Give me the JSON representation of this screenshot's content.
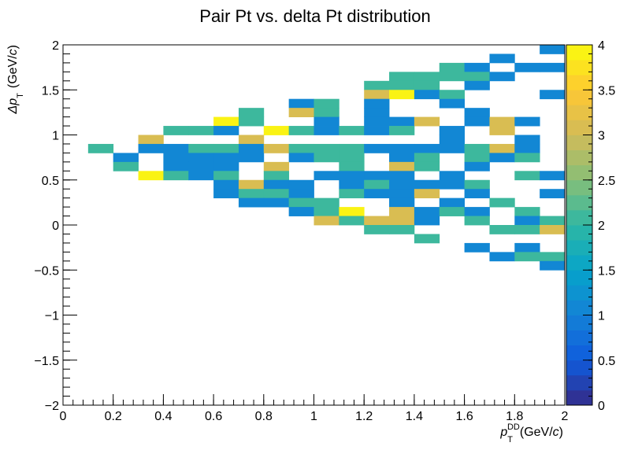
{
  "chart_data": {
    "type": "heatmap",
    "title": "Pair Pt vs. delta Pt distribution",
    "xlabel": {
      "main": "p",
      "sub": "T",
      "sup": "DD",
      "unit_prefix": "(GeV/",
      "unit_italic": "c",
      "unit_suffix": ")"
    },
    "ylabel": {
      "main": "Δp",
      "sub": "T",
      "unit_prefix": "(GeV/",
      "unit_italic": "c",
      "unit_suffix": ")"
    },
    "xlim": [
      0,
      2
    ],
    "ylim": [
      -2,
      2
    ],
    "zlim": [
      0,
      4
    ],
    "x_bins": 20,
    "y_bins": 40,
    "x_ticks": [
      {
        "v": 0,
        "label": "0"
      },
      {
        "v": 0.2,
        "label": "0.2"
      },
      {
        "v": 0.4,
        "label": "0.4"
      },
      {
        "v": 0.6,
        "label": "0.6"
      },
      {
        "v": 0.8,
        "label": "0.8"
      },
      {
        "v": 1,
        "label": "1"
      },
      {
        "v": 1.2,
        "label": "1.2"
      },
      {
        "v": 1.4,
        "label": "1.4"
      },
      {
        "v": 1.6,
        "label": "1.6"
      },
      {
        "v": 1.8,
        "label": "1.8"
      },
      {
        "v": 2,
        "label": "2"
      }
    ],
    "y_ticks": [
      {
        "v": -2,
        "label": "−2"
      },
      {
        "v": -1.5,
        "label": "−1.5"
      },
      {
        "v": -1,
        "label": "−1"
      },
      {
        "v": -0.5,
        "label": "−0.5"
      },
      {
        "v": 0,
        "label": "0"
      },
      {
        "v": 0.5,
        "label": "0.5"
      },
      {
        "v": 1,
        "label": "1"
      },
      {
        "v": 1.5,
        "label": "1.5"
      },
      {
        "v": 2,
        "label": "2"
      }
    ],
    "z_ticks": [
      {
        "v": 0,
        "label": "0"
      },
      {
        "v": 0.5,
        "label": "0.5"
      },
      {
        "v": 1,
        "label": "1"
      },
      {
        "v": 1.5,
        "label": "1.5"
      },
      {
        "v": 2,
        "label": "2"
      },
      {
        "v": 2.5,
        "label": "2.5"
      },
      {
        "v": 3,
        "label": "3"
      },
      {
        "v": 3.5,
        "label": "3.5"
      },
      {
        "v": 4,
        "label": "4"
      }
    ],
    "cells": [
      [
        19,
        39,
        1
      ],
      [
        17,
        38,
        1
      ],
      [
        15,
        37,
        2
      ],
      [
        16,
        37,
        1
      ],
      [
        18,
        37,
        1
      ],
      [
        19,
        37,
        1
      ],
      [
        13,
        36,
        2
      ],
      [
        14,
        36,
        2
      ],
      [
        15,
        36,
        2
      ],
      [
        16,
        36,
        2
      ],
      [
        17,
        36,
        1
      ],
      [
        12,
        35,
        2
      ],
      [
        13,
        35,
        2
      ],
      [
        14,
        35,
        2
      ],
      [
        16,
        35,
        1
      ],
      [
        12,
        34,
        3
      ],
      [
        13,
        34,
        4
      ],
      [
        14,
        34,
        1
      ],
      [
        15,
        34,
        2
      ],
      [
        19,
        34,
        1
      ],
      [
        9,
        33,
        1
      ],
      [
        10,
        33,
        2
      ],
      [
        12,
        33,
        1
      ],
      [
        15,
        33,
        1
      ],
      [
        7,
        32,
        2
      ],
      [
        9,
        32,
        3
      ],
      [
        10,
        32,
        2
      ],
      [
        12,
        32,
        1
      ],
      [
        16,
        32,
        1
      ],
      [
        6,
        31,
        4
      ],
      [
        7,
        31,
        2
      ],
      [
        10,
        31,
        1
      ],
      [
        12,
        31,
        1
      ],
      [
        13,
        31,
        1
      ],
      [
        14,
        31,
        3
      ],
      [
        16,
        31,
        1
      ],
      [
        17,
        31,
        3
      ],
      [
        18,
        31,
        1
      ],
      [
        4,
        30,
        2
      ],
      [
        5,
        30,
        2
      ],
      [
        6,
        30,
        1
      ],
      [
        8,
        30,
        4
      ],
      [
        9,
        30,
        2
      ],
      [
        10,
        30,
        1
      ],
      [
        11,
        30,
        2
      ],
      [
        12,
        30,
        1
      ],
      [
        13,
        30,
        2
      ],
      [
        15,
        30,
        1
      ],
      [
        17,
        30,
        3
      ],
      [
        3,
        29,
        3
      ],
      [
        7,
        29,
        3
      ],
      [
        15,
        29,
        1
      ],
      [
        18,
        29,
        1
      ],
      [
        1,
        28,
        2
      ],
      [
        3,
        28,
        1
      ],
      [
        4,
        28,
        1
      ],
      [
        5,
        28,
        2
      ],
      [
        6,
        28,
        2
      ],
      [
        7,
        28,
        1
      ],
      [
        8,
        28,
        3
      ],
      [
        9,
        28,
        2
      ],
      [
        10,
        28,
        2
      ],
      [
        11,
        28,
        2
      ],
      [
        12,
        28,
        1
      ],
      [
        13,
        28,
        1
      ],
      [
        14,
        28,
        1
      ],
      [
        15,
        28,
        1
      ],
      [
        16,
        28,
        2
      ],
      [
        17,
        28,
        3
      ],
      [
        18,
        28,
        1
      ],
      [
        2,
        27,
        1
      ],
      [
        4,
        27,
        1
      ],
      [
        5,
        27,
        1
      ],
      [
        6,
        27,
        1
      ],
      [
        7,
        27,
        1
      ],
      [
        9,
        27,
        1
      ],
      [
        10,
        27,
        2
      ],
      [
        11,
        27,
        2
      ],
      [
        13,
        27,
        1
      ],
      [
        14,
        27,
        2
      ],
      [
        16,
        27,
        2
      ],
      [
        17,
        27,
        1
      ],
      [
        18,
        27,
        2
      ],
      [
        2,
        26,
        2
      ],
      [
        4,
        26,
        1
      ],
      [
        5,
        26,
        1
      ],
      [
        6,
        26,
        1
      ],
      [
        8,
        26,
        3
      ],
      [
        11,
        26,
        2
      ],
      [
        13,
        26,
        3
      ],
      [
        14,
        26,
        2
      ],
      [
        16,
        26,
        1
      ],
      [
        3,
        25,
        4
      ],
      [
        4,
        25,
        2
      ],
      [
        5,
        25,
        1
      ],
      [
        6,
        25,
        2
      ],
      [
        8,
        25,
        2
      ],
      [
        10,
        25,
        1
      ],
      [
        11,
        25,
        1
      ],
      [
        12,
        25,
        1
      ],
      [
        13,
        25,
        1
      ],
      [
        15,
        25,
        1
      ],
      [
        18,
        25,
        2
      ],
      [
        19,
        25,
        1
      ],
      [
        6,
        24,
        1
      ],
      [
        7,
        24,
        3
      ],
      [
        8,
        24,
        1
      ],
      [
        9,
        24,
        1
      ],
      [
        11,
        24,
        1
      ],
      [
        12,
        24,
        2
      ],
      [
        13,
        24,
        1
      ],
      [
        14,
        24,
        1
      ],
      [
        15,
        24,
        1
      ],
      [
        16,
        24,
        2
      ],
      [
        6,
        23,
        1
      ],
      [
        7,
        23,
        2
      ],
      [
        8,
        23,
        2
      ],
      [
        9,
        23,
        1
      ],
      [
        11,
        23,
        2
      ],
      [
        12,
        23,
        1
      ],
      [
        13,
        23,
        1
      ],
      [
        14,
        23,
        3
      ],
      [
        16,
        23,
        1
      ],
      [
        19,
        23,
        1
      ],
      [
        7,
        22,
        1
      ],
      [
        8,
        22,
        1
      ],
      [
        9,
        22,
        2
      ],
      [
        10,
        22,
        2
      ],
      [
        13,
        22,
        1
      ],
      [
        15,
        22,
        1
      ],
      [
        17,
        22,
        2
      ],
      [
        9,
        21,
        1
      ],
      [
        10,
        21,
        2
      ],
      [
        11,
        21,
        4
      ],
      [
        13,
        21,
        3
      ],
      [
        14,
        21,
        1
      ],
      [
        15,
        21,
        2
      ],
      [
        16,
        21,
        1
      ],
      [
        18,
        21,
        2
      ],
      [
        10,
        20,
        3
      ],
      [
        11,
        20,
        2
      ],
      [
        12,
        20,
        3
      ],
      [
        13,
        20,
        3
      ],
      [
        14,
        20,
        1
      ],
      [
        16,
        20,
        2
      ],
      [
        18,
        20,
        1
      ],
      [
        19,
        20,
        2
      ],
      [
        12,
        19,
        2
      ],
      [
        13,
        19,
        2
      ],
      [
        17,
        19,
        2
      ],
      [
        18,
        19,
        2
      ],
      [
        19,
        19,
        3
      ],
      [
        14,
        18,
        2
      ],
      [
        16,
        17,
        1
      ],
      [
        18,
        17,
        1
      ],
      [
        17,
        16,
        1
      ],
      [
        18,
        16,
        2
      ],
      [
        19,
        16,
        2
      ],
      [
        19,
        15,
        1
      ]
    ]
  },
  "palette": [
    "#352a87",
    "#0f5cdd",
    "#1481d6",
    "#06a4ca",
    "#2eb7a4",
    "#87bf77",
    "#d1bb59",
    "#fec832",
    "#f9fb0e"
  ]
}
